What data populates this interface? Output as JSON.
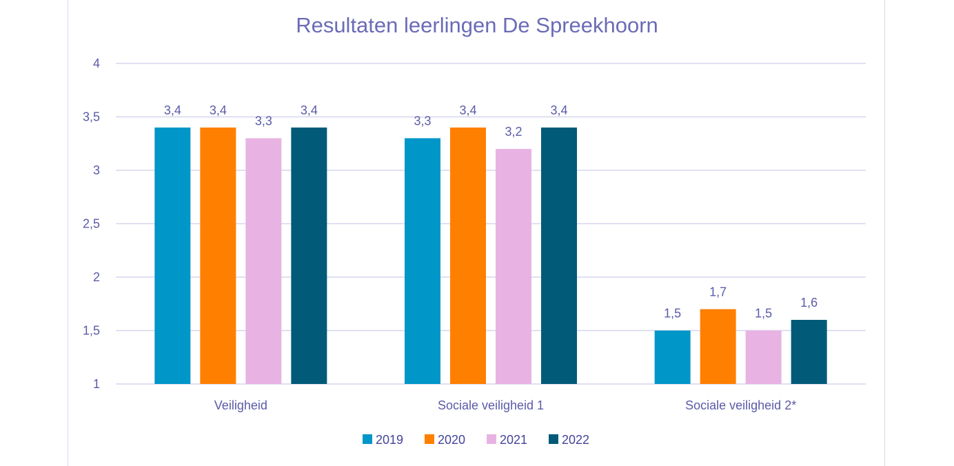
{
  "chart_data": {
    "type": "bar",
    "title": "Resultaten leerlingen De Spreekhoorn",
    "xlabel": "",
    "ylabel": "",
    "ylim": [
      1,
      4
    ],
    "yticks": [
      "1",
      "1,5",
      "2",
      "2,5",
      "3",
      "3,5",
      "4"
    ],
    "ytick_values": [
      1,
      1.5,
      2,
      2.5,
      3,
      3.5,
      4
    ],
    "grid": true,
    "legend_position": "bottom",
    "categories": [
      "Veiligheid",
      "Sociale veiligheid 1",
      "Sociale veiligheid 2*"
    ],
    "series": [
      {
        "name": "2019",
        "color": "#0096c8",
        "values": [
          3.4,
          3.3,
          1.5
        ],
        "labels": [
          "3,4",
          "3,3",
          "1,5"
        ]
      },
      {
        "name": "2020",
        "color": "#ff7f00",
        "values": [
          3.4,
          3.4,
          1.7
        ],
        "labels": [
          "3,4",
          "3,4",
          "1,7"
        ]
      },
      {
        "name": "2021",
        "color": "#e8b3e3",
        "values": [
          3.3,
          3.2,
          1.5
        ],
        "labels": [
          "3,3",
          "3,2",
          "1,5"
        ]
      },
      {
        "name": "2022",
        "color": "#005a78",
        "values": [
          3.4,
          3.4,
          1.6
        ],
        "labels": [
          "3,4",
          "3,4",
          "1,6"
        ]
      }
    ]
  }
}
